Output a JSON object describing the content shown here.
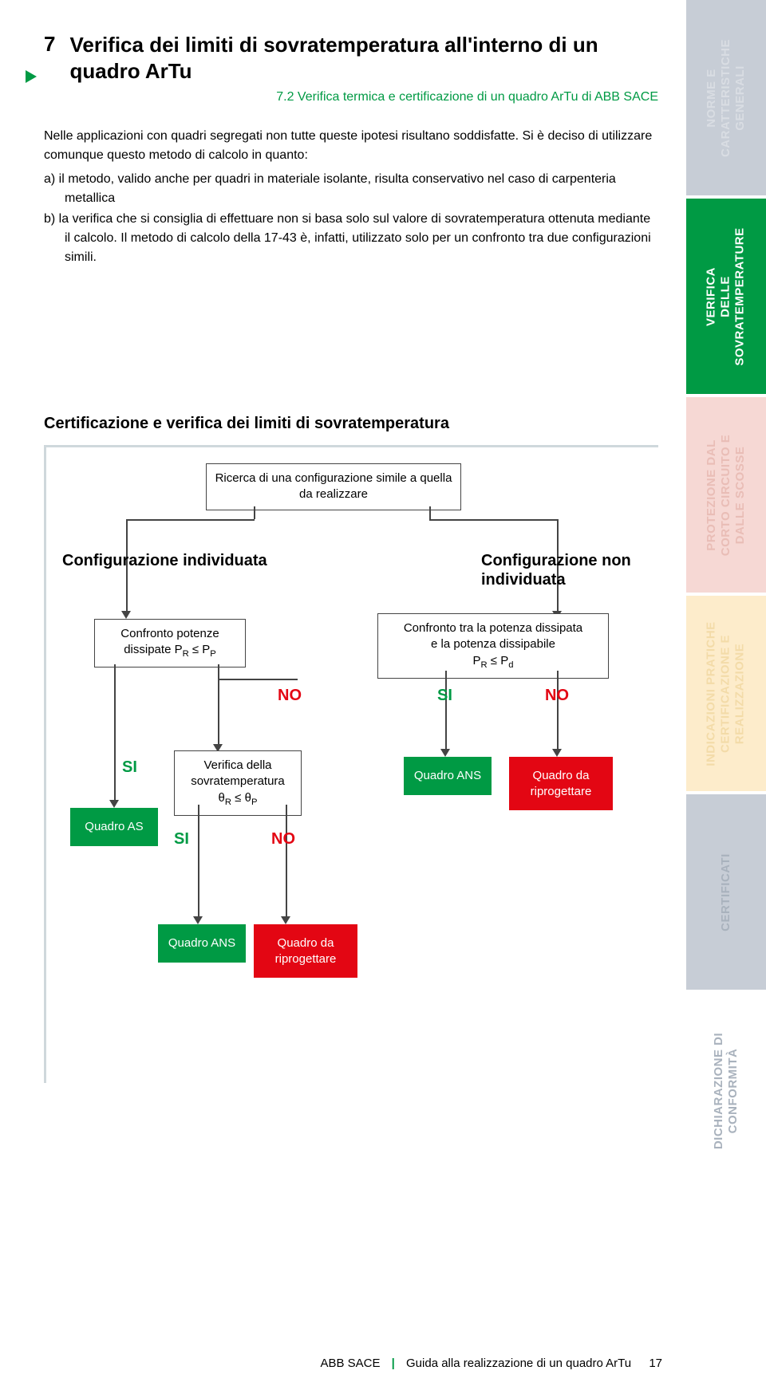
{
  "header": {
    "section_number": "7",
    "title": "Verifica dei limiti di sovratemperatura all'interno di un quadro ArTu",
    "subtitle": "7.2 Verifica termica e certificazione di un quadro ArTu di ABB SACE"
  },
  "paragraphs": {
    "intro": "Nelle applicazioni con quadri segregati non tutte queste ipotesi risultano soddisfatte. Si è deciso di utilizzare comunque questo metodo di calcolo in quanto:",
    "item_a": "a)  il metodo, valido anche per quadri in materiale isolante, risulta conservativo nel caso di carpenteria metallica",
    "item_b": "b)  la verifica che si consiglia di effettuare non si basa solo sul valore di sovratemperatura ottenuta mediante il calcolo. Il metodo di calcolo della 17-43 è, infatti, utilizzato solo per un confronto tra due configurazioni simili."
  },
  "section_heading": "Certificazione e verifica dei limiti di sovratemperatura",
  "flowchart": {
    "start": "Ricerca di una configurazione simile a quella da realizzare",
    "left_branch_label": "Configurazione individuata",
    "right_branch_label": "Configurazione non individuata",
    "compare_left_l1": "Confronto potenze",
    "compare_left_l2": "dissipate P",
    "compare_left_sub1": "R",
    "compare_left_mid": " ≤ P",
    "compare_left_sub2": "P",
    "compare_right_l1": "Confronto tra la potenza dissipata",
    "compare_right_l2": "e la potenza dissipabile",
    "compare_right_l3a": "P",
    "compare_right_sub1": "R",
    "compare_right_l3b": " ≤ P",
    "compare_right_sub2": "d",
    "verify_l1": "Verifica della",
    "verify_l2": "sovratemperatura",
    "verify_l3a": "θ",
    "verify_sub1": "R",
    "verify_l3b": " ≤ θ",
    "verify_sub2": "P",
    "si": "SI",
    "no": "NO",
    "quadro_as": "Quadro AS",
    "quadro_ans": "Quadro ANS",
    "quadro_riprog": "Quadro da riprogettare"
  },
  "tabs": [
    {
      "label": "NORME E CARATTERISTICHE GENERALI",
      "bg": "#c7cdd6",
      "fg": "#d9dde3"
    },
    {
      "label": "VERIFICA DELLE SOVRATEMPERATURE",
      "bg": "#009a44",
      "fg": "#ffffff"
    },
    {
      "label": "PROTEZIONE DAL CORTO CIRCUITO E DALLE SCOSSE",
      "bg": "#f6d8d4",
      "fg": "#e9bdb6"
    },
    {
      "label": "INDICAZIONI PRATICHE CERTIFICAZIONE E REALIZZAZIONE",
      "bg": "#fdeccb",
      "fg": "#f3dba8"
    },
    {
      "label": "CERTIFICATI",
      "bg": "#c7cdd6",
      "fg": "#a9b2bd"
    },
    {
      "label": "DICHIARAZIONE DI CONFORMITÀ",
      "bg": "#ffffff",
      "fg": "#a9b2bd"
    }
  ],
  "footer": {
    "left": "ABB SACE",
    "right": "Guida alla realizzazione di un quadro ArTu",
    "page": "17"
  }
}
